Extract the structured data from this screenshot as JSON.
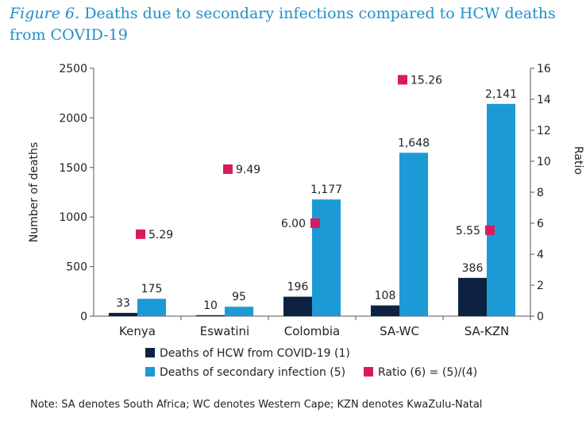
{
  "title_prefix": "Figure 6.",
  "title_text": "Deaths due to secondary infections compared to HCW deaths from COVID-19",
  "note": "Note: SA denotes South Africa; WC denotes Western Cape; KZN denotes KwaZulu-Natal",
  "colors": {
    "hcw": "#0d2240",
    "secondary": "#1b9ad6",
    "ratio": "#d81b5e",
    "title": "#1f8fc8"
  },
  "chart_data": {
    "type": "bar",
    "categories": [
      "Kenya",
      "Eswatini",
      "Colombia",
      "SA-WC",
      "SA-KZN"
    ],
    "series": [
      {
        "name": "Deaths of HCW from COVID-19 (1)",
        "values": [
          33,
          10,
          196,
          108,
          386
        ],
        "labels": [
          "33",
          "10",
          "196",
          "108",
          "386"
        ],
        "axis": "left"
      },
      {
        "name": "Deaths of secondary infection (5)",
        "values": [
          175,
          95,
          1177,
          1648,
          2141
        ],
        "labels": [
          "175",
          "95",
          "1,177",
          "1,648",
          "2,141"
        ],
        "axis": "left"
      },
      {
        "name": "Ratio (6) = (5)/(4)",
        "type": "scatter",
        "values": [
          5.29,
          9.49,
          6.0,
          15.26,
          5.55
        ],
        "labels": [
          "5.29",
          "9.49",
          "6.00",
          "15.26",
          "5.55"
        ],
        "axis": "right"
      }
    ],
    "ylabel": "Number of deaths",
    "y2label": "Ratio",
    "ylim": [
      0,
      2500
    ],
    "y2lim": [
      0,
      16
    ],
    "yticks": [
      "0",
      "500",
      "1000",
      "1500",
      "2000",
      "2500"
    ],
    "y2ticks": [
      "0",
      "2",
      "4",
      "6",
      "8",
      "10",
      "12",
      "14",
      "16"
    ],
    "grid": false,
    "legend_position": "bottom"
  }
}
